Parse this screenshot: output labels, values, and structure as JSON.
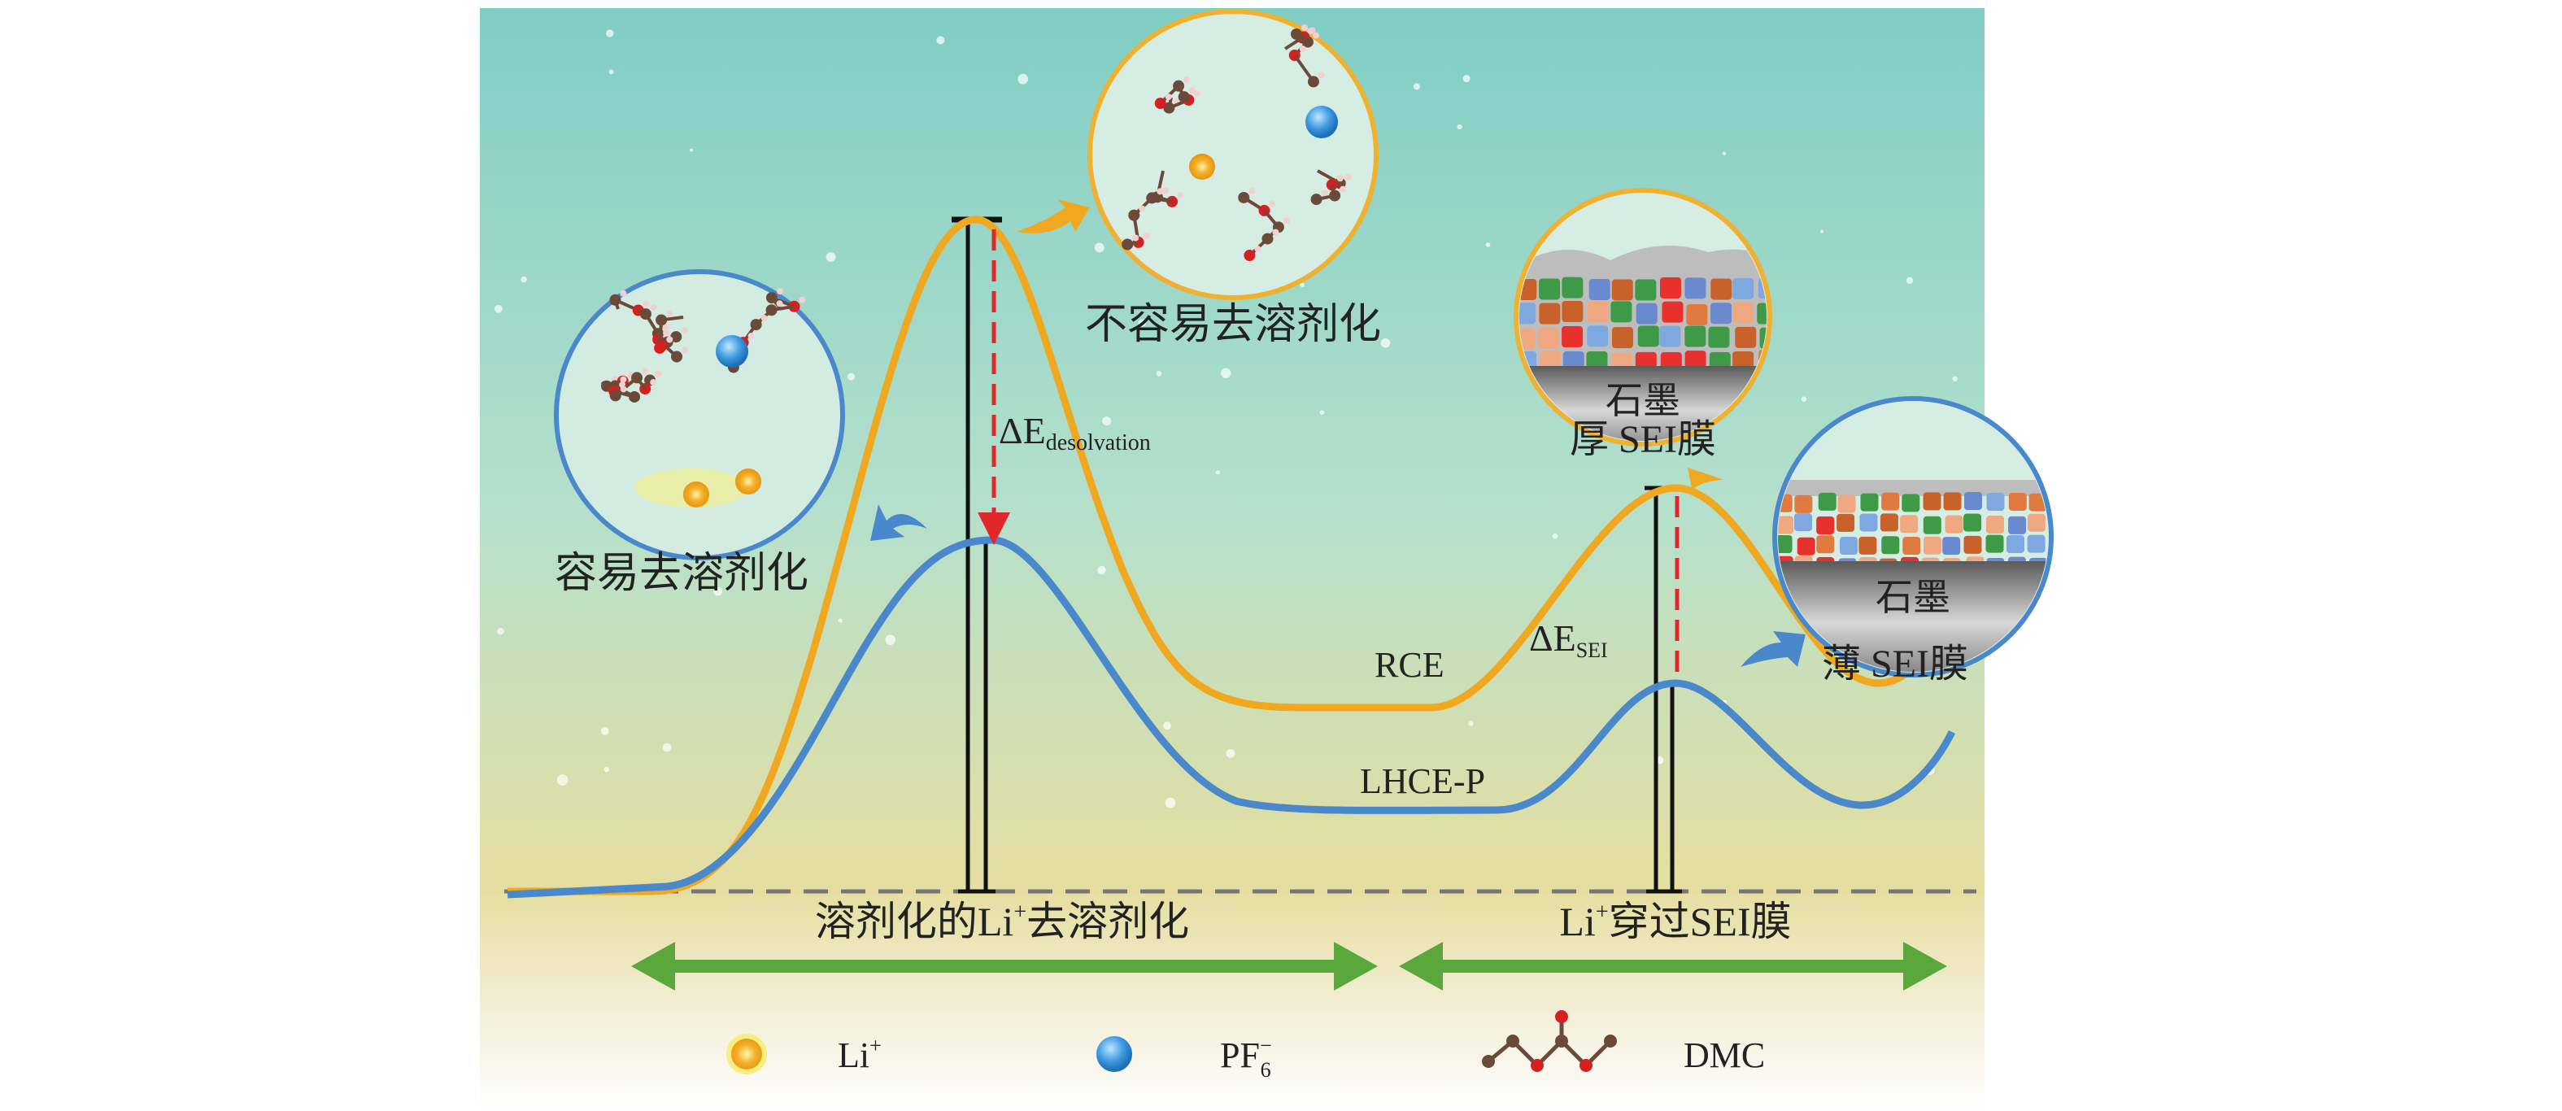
{
  "labels": {
    "easy_desolvation": "容易去溶剂化",
    "hard_desolvation": "不容易去溶剂化",
    "delta_e": "ΔE",
    "desolvation_sub": "desolvation",
    "sei_sub": "SEI",
    "graphite": "石墨",
    "thick_sei": "厚 SEI膜",
    "thin_sei": "薄 SEI膜",
    "rce": "RCE",
    "lhce": "LHCE-P",
    "stage1_pre": "溶剂化的Li",
    "stage1_sup": "+",
    "stage1_post": "去溶剂化",
    "stage2_pre": "Li",
    "stage2_sup": "+",
    "stage2_post": "穿过SEI膜"
  },
  "legend": [
    {
      "label": "Li",
      "sup": "+",
      "icon": "li-ion-icon"
    },
    {
      "label": "PF",
      "sub": "6",
      "sup": "−",
      "icon": "pf6-ion-icon"
    },
    {
      "label": "DMC",
      "icon": "dmc-molecule-icon"
    }
  ],
  "colors": {
    "rce_curve": "#f0a820",
    "lhce_curve": "#4a88cc",
    "arrow_green": "#5aa83c",
    "dashed_red": "#e0282a",
    "bg_top": "#86d0c6",
    "bg_bottom": "#ece3a8"
  }
}
